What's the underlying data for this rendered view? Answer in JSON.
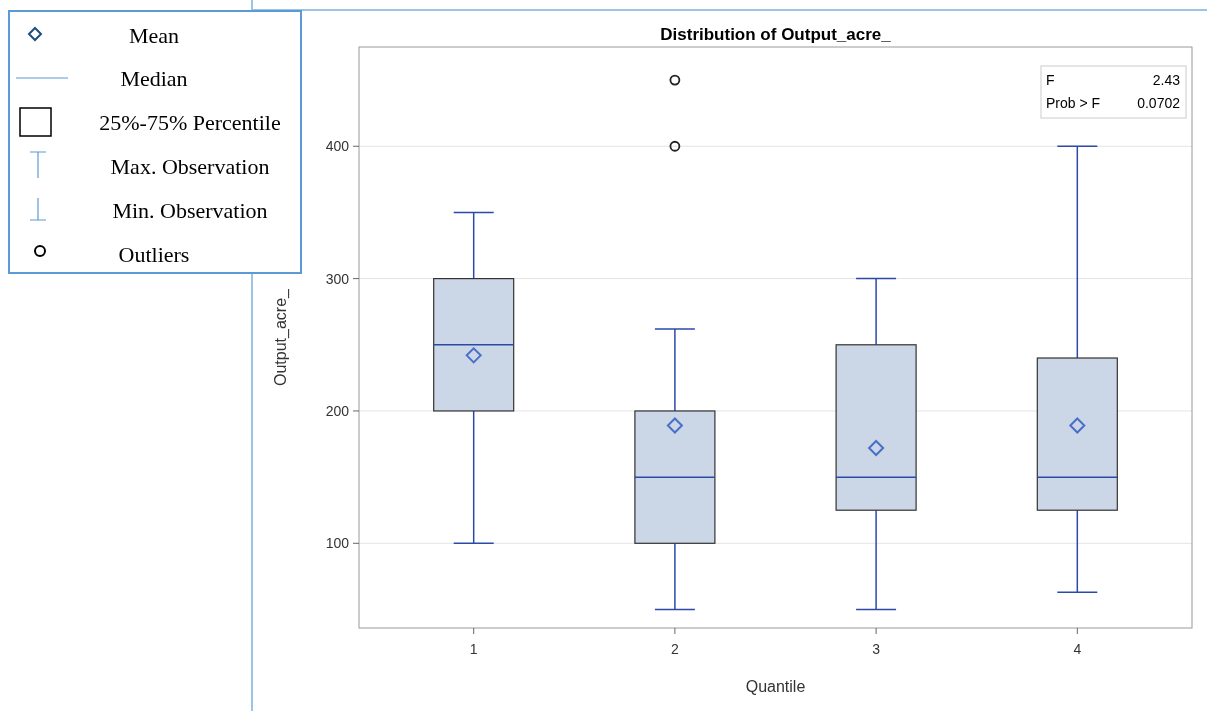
{
  "chart_data": {
    "type": "box",
    "title": "Distribution of Output_acre_",
    "xlabel": "Quantile",
    "ylabel": "Output_acre_",
    "categories": [
      "1",
      "2",
      "3",
      "4"
    ],
    "series": [
      {
        "color": "#cbd6e6",
        "boxes": [
          {
            "low": 100,
            "q1": 200,
            "median": 250,
            "q3": 300,
            "high": 350,
            "mean": 242
          },
          {
            "low": 50,
            "q1": 100,
            "median": 150,
            "q3": 200,
            "high": 262,
            "mean": 189,
            "outliers": [
              400,
              450
            ]
          },
          {
            "low": 50,
            "q1": 125,
            "median": 150,
            "q3": 250,
            "high": 300,
            "mean": 172
          },
          {
            "low": 63,
            "q1": 125,
            "median": 150,
            "q3": 240,
            "high": 400,
            "mean": 189
          }
        ]
      }
    ],
    "ylim": [
      36,
      475
    ],
    "yticks": [
      100,
      200,
      300,
      400
    ],
    "grid": "y",
    "annotations": [
      "F",
      "2.43",
      "Prob > F",
      "0.0702",
      "Mean",
      "Median",
      "25%-75% Percentile",
      "Max. Observation",
      "Min. Observation",
      "Outliers"
    ]
  }
}
